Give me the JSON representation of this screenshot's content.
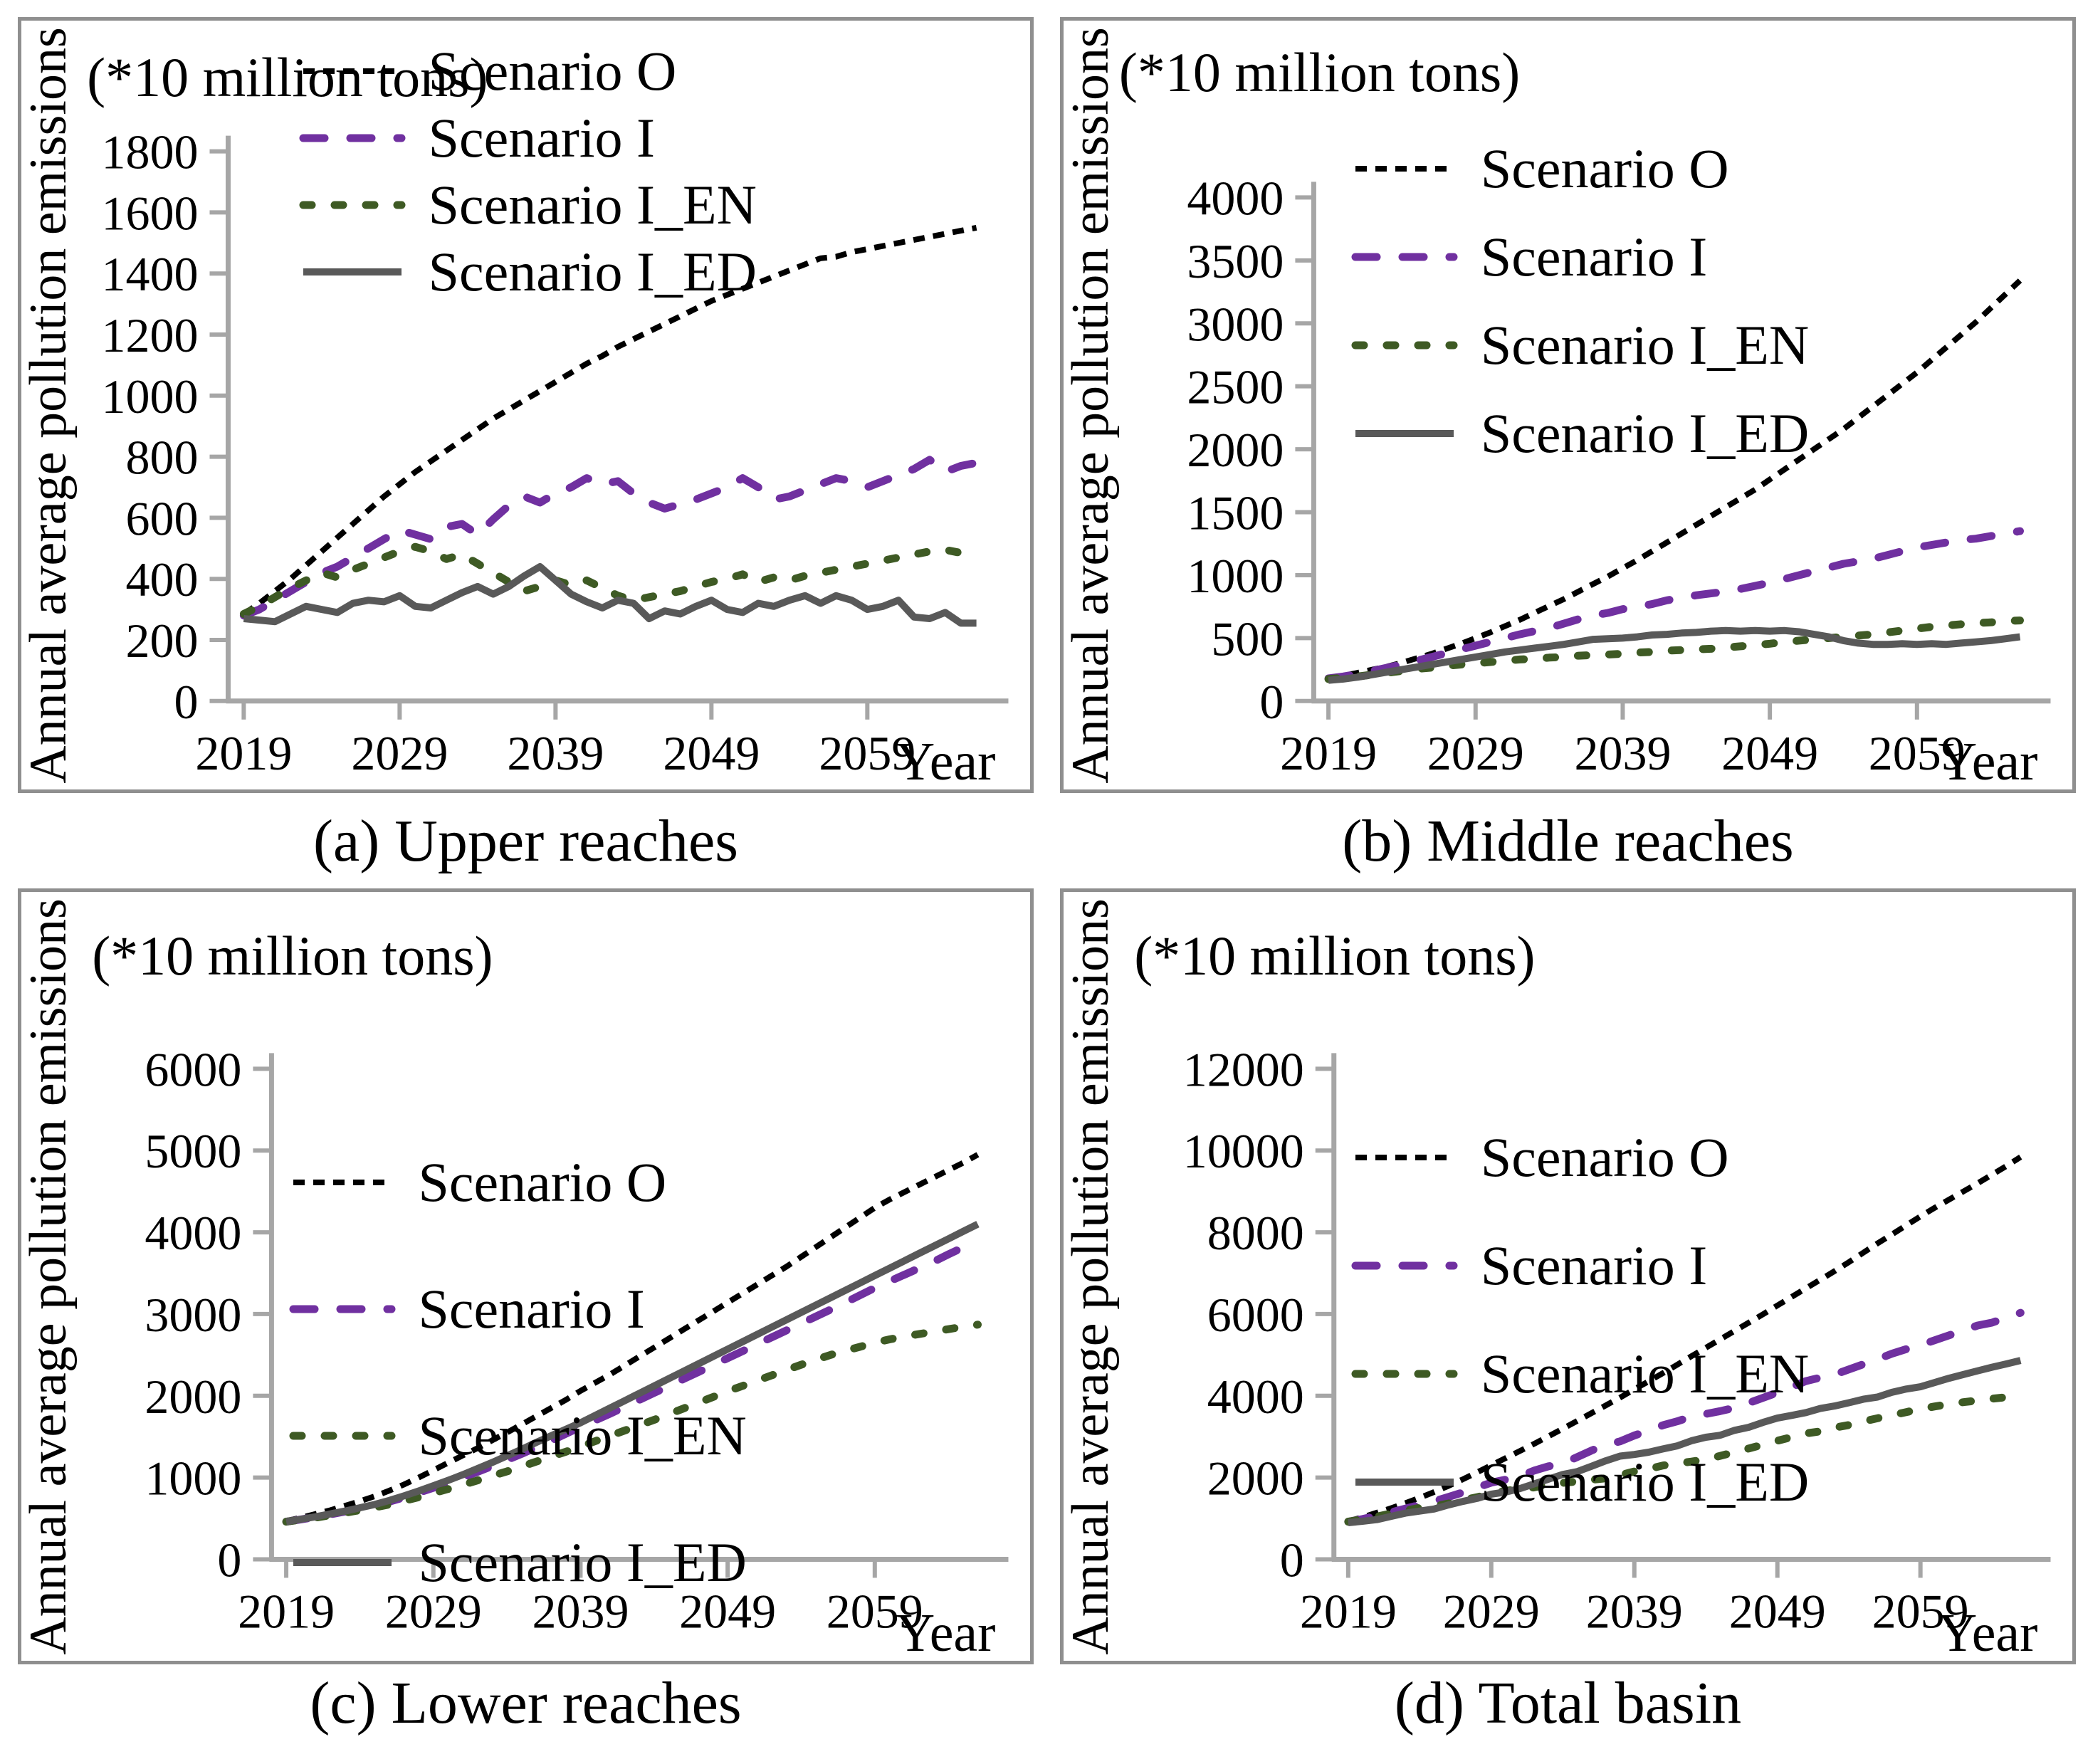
{
  "labels": {
    "y_axis": "Annual average pollution emissions",
    "x_axis": "Year",
    "unit_note": "(*10 million tons)"
  },
  "legend": {
    "entries": [
      "Scenario O",
      "Scenario I",
      "Scenario I_EN",
      "Scenario I_ED"
    ]
  },
  "colors": {
    "scenario_o": "#000000",
    "scenario_i": "#7030A0",
    "scenario_i_en": "#3E5A24",
    "scenario_i_ed": "#595959",
    "axis_gray": "#a6a6a6",
    "frame_gray": "#8f8f8f"
  },
  "chart_data": [
    {
      "id": "a",
      "type": "line",
      "title": "(a) Upper reaches",
      "unit_note": "(*10 million tons)",
      "ylabel": "Annual average pollution emissions",
      "xlabel": "Year",
      "ylim": [
        0,
        1800
      ],
      "y_step": 200,
      "x_years_start": 2019,
      "x_ticks": [
        2019,
        2029,
        2039,
        2049,
        2059
      ],
      "xlim": [
        2018,
        2067.5
      ],
      "grid": false,
      "legend_position": "top-inside",
      "series": [
        {
          "name": "Scenario O",
          "color": "#000000",
          "line_style": "dotted-short",
          "values": [
            285,
            320,
            360,
            400,
            445,
            490,
            535,
            580,
            625,
            670,
            710,
            750,
            785,
            820,
            855,
            890,
            925,
            955,
            985,
            1015,
            1045,
            1075,
            1105,
            1130,
            1160,
            1185,
            1210,
            1235,
            1260,
            1285,
            1310,
            1330,
            1350,
            1370,
            1390,
            1410,
            1430,
            1450,
            1455,
            1470,
            1480,
            1490,
            1500,
            1510,
            1520,
            1530,
            1540,
            1550
          ]
        },
        {
          "name": "Scenario I",
          "color": "#7030A0",
          "line_style": "dashed-long",
          "values": [
            280,
            300,
            330,
            360,
            390,
            420,
            440,
            470,
            500,
            530,
            560,
            545,
            530,
            570,
            580,
            545,
            595,
            640,
            670,
            650,
            680,
            700,
            730,
            710,
            720,
            680,
            650,
            630,
            645,
            660,
            680,
            700,
            730,
            700,
            660,
            670,
            690,
            710,
            730,
            720,
            700,
            720,
            740,
            760,
            790,
            750,
            770,
            780
          ]
        },
        {
          "name": "Scenario I_EN",
          "color": "#3E5A24",
          "line_style": "dashed-short",
          "values": [
            285,
            310,
            340,
            370,
            395,
            420,
            405,
            430,
            450,
            470,
            490,
            505,
            490,
            465,
            480,
            450,
            420,
            390,
            360,
            375,
            395,
            380,
            395,
            370,
            345,
            330,
            340,
            350,
            360,
            375,
            390,
            400,
            415,
            390,
            405,
            395,
            410,
            420,
            430,
            440,
            450,
            460,
            470,
            480,
            490,
            495,
            485,
            500
          ]
        },
        {
          "name": "Scenario I_ED",
          "color": "#595959",
          "line_style": "solid",
          "values": [
            270,
            265,
            260,
            285,
            310,
            300,
            290,
            320,
            330,
            325,
            345,
            310,
            305,
            330,
            355,
            375,
            350,
            375,
            410,
            440,
            395,
            350,
            325,
            305,
            330,
            320,
            270,
            295,
            285,
            310,
            330,
            300,
            290,
            320,
            310,
            330,
            345,
            320,
            345,
            330,
            300,
            310,
            330,
            275,
            270,
            290,
            255,
            255
          ]
        }
      ]
    },
    {
      "id": "b",
      "type": "line",
      "title": "(b) Middle reaches",
      "unit_note": "(*10 million tons)",
      "ylabel": "Annual average pollution emissions",
      "xlabel": "Year",
      "ylim": [
        0,
        4000
      ],
      "y_step": 500,
      "x_years_start": 2019,
      "x_ticks": [
        2019,
        2029,
        2039,
        2049,
        2059
      ],
      "xlim": [
        2018,
        2067.5
      ],
      "grid": false,
      "legend_position": "upper-left-inside",
      "series": [
        {
          "name": "Scenario O",
          "color": "#000000",
          "line_style": "dotted-short",
          "values": [
            180,
            200,
            225,
            250,
            275,
            305,
            340,
            375,
            415,
            455,
            500,
            545,
            595,
            645,
            700,
            755,
            810,
            870,
            930,
            990,
            1055,
            1120,
            1190,
            1260,
            1330,
            1400,
            1470,
            1540,
            1610,
            1680,
            1760,
            1840,
            1920,
            2000,
            2080,
            2160,
            2250,
            2340,
            2430,
            2520,
            2610,
            2710,
            2810,
            2910,
            3010,
            3120,
            3230,
            3340
          ]
        },
        {
          "name": "Scenario I",
          "color": "#7030A0",
          "line_style": "dashed-long",
          "values": [
            180,
            195,
            215,
            240,
            265,
            290,
            320,
            350,
            380,
            410,
            440,
            470,
            500,
            530,
            555,
            580,
            615,
            650,
            680,
            700,
            730,
            750,
            770,
            800,
            820,
            840,
            855,
            870,
            890,
            915,
            940,
            970,
            1000,
            1030,
            1060,
            1090,
            1110,
            1130,
            1160,
            1190,
            1220,
            1240,
            1260,
            1280,
            1290,
            1310,
            1330,
            1350
          ]
        },
        {
          "name": "Scenario I_EN",
          "color": "#3E5A24",
          "line_style": "dashed-short",
          "values": [
            175,
            185,
            195,
            210,
            225,
            240,
            255,
            265,
            280,
            290,
            300,
            310,
            320,
            330,
            335,
            345,
            350,
            360,
            365,
            370,
            375,
            385,
            390,
            400,
            405,
            410,
            415,
            425,
            435,
            445,
            455,
            470,
            480,
            490,
            500,
            510,
            520,
            530,
            545,
            560,
            575,
            590,
            600,
            610,
            620,
            625,
            635,
            640
          ]
        },
        {
          "name": "Scenario I_ED",
          "color": "#595959",
          "line_style": "solid",
          "values": [
            165,
            175,
            190,
            210,
            230,
            250,
            270,
            290,
            310,
            330,
            350,
            370,
            390,
            405,
            420,
            435,
            450,
            470,
            490,
            495,
            500,
            510,
            525,
            530,
            540,
            545,
            555,
            560,
            555,
            560,
            555,
            560,
            550,
            530,
            510,
            480,
            460,
            450,
            450,
            455,
            450,
            455,
            450,
            460,
            470,
            480,
            495,
            510
          ]
        }
      ]
    },
    {
      "id": "c",
      "type": "line",
      "title": "(c) Lower reaches",
      "unit_note": "(*10 million tons)",
      "ylabel": "Annual average pollution emissions",
      "xlabel": "Year",
      "ylim": [
        0,
        6000
      ],
      "y_step": 1000,
      "x_years_start": 2019,
      "x_ticks": [
        2019,
        2029,
        2039,
        2049,
        2059
      ],
      "xlim": [
        2018,
        2067.5
      ],
      "grid": false,
      "legend_position": "upper-left-inside",
      "series": [
        {
          "name": "Scenario O",
          "color": "#000000",
          "line_style": "dotted-short",
          "values": [
            470,
            510,
            555,
            600,
            655,
            710,
            770,
            840,
            915,
            1000,
            1090,
            1180,
            1270,
            1360,
            1455,
            1550,
            1650,
            1750,
            1850,
            1950,
            2060,
            2160,
            2260,
            2370,
            2480,
            2590,
            2700,
            2810,
            2920,
            3030,
            3140,
            3250,
            3360,
            3470,
            3580,
            3700,
            3820,
            3940,
            4060,
            4180,
            4300,
            4400,
            4490,
            4580,
            4670,
            4760,
            4850,
            4950
          ]
        },
        {
          "name": "Scenario I",
          "color": "#7030A0",
          "line_style": "dashed-long",
          "values": [
            460,
            488,
            518,
            550,
            585,
            622,
            660,
            705,
            757,
            815,
            875,
            935,
            1000,
            1070,
            1140,
            1215,
            1290,
            1370,
            1450,
            1535,
            1620,
            1700,
            1780,
            1865,
            1950,
            2035,
            2120,
            2205,
            2290,
            2375,
            2460,
            2545,
            2630,
            2715,
            2800,
            2885,
            2970,
            3055,
            3140,
            3230,
            3320,
            3400,
            3480,
            3560,
            3640,
            3730,
            3815,
            3900
          ]
        },
        {
          "name": "Scenario I_EN",
          "color": "#3E5A24",
          "line_style": "dashed-short",
          "values": [
            460,
            485,
            510,
            540,
            570,
            600,
            635,
            670,
            715,
            760,
            810,
            860,
            910,
            965,
            1020,
            1075,
            1135,
            1195,
            1255,
            1315,
            1380,
            1445,
            1510,
            1575,
            1640,
            1705,
            1775,
            1845,
            1915,
            1985,
            2055,
            2120,
            2185,
            2250,
            2315,
            2380,
            2440,
            2500,
            2550,
            2600,
            2650,
            2690,
            2725,
            2755,
            2785,
            2815,
            2845,
            2870
          ]
        },
        {
          "name": "Scenario I_ED",
          "color": "#595959",
          "line_style": "solid",
          "values": [
            460,
            490,
            520,
            555,
            590,
            630,
            670,
            720,
            775,
            835,
            900,
            965,
            1035,
            1110,
            1185,
            1265,
            1345,
            1430,
            1510,
            1590,
            1670,
            1760,
            1850,
            1940,
            2030,
            2120,
            2210,
            2300,
            2390,
            2480,
            2570,
            2660,
            2750,
            2840,
            2930,
            3020,
            3110,
            3200,
            3290,
            3380,
            3470,
            3560,
            3650,
            3740,
            3830,
            3920,
            4010,
            4100
          ]
        }
      ]
    },
    {
      "id": "d",
      "type": "line",
      "title": "(d) Total basin",
      "unit_note": "(*10 million tons)",
      "ylabel": "Annual average pollution emissions",
      "xlabel": "Year",
      "ylim": [
        0,
        12000
      ],
      "y_step": 2000,
      "x_years_start": 2019,
      "x_ticks": [
        2019,
        2029,
        2039,
        2049,
        2059
      ],
      "xlim": [
        2018,
        2067.5
      ],
      "grid": false,
      "legend_position": "upper-left-inside",
      "series": [
        {
          "name": "Scenario O",
          "color": "#000000",
          "line_style": "dotted-short",
          "values": [
            935,
            1030,
            1140,
            1250,
            1375,
            1505,
            1645,
            1795,
            1955,
            2125,
            2300,
            2475,
            2650,
            2825,
            3010,
            3195,
            3385,
            3575,
            3765,
            3955,
            4160,
            4355,
            4555,
            4760,
            4970,
            5175,
            5380,
            5585,
            5790,
            5995,
            6210,
            6420,
            6630,
            6840,
            7050,
            7270,
            7500,
            7730,
            7945,
            8170,
            8390,
            8600,
            8800,
            9000,
            9200,
            9410,
            9620,
            9840
          ]
        },
        {
          "name": "Scenario I",
          "color": "#7030A0",
          "line_style": "dashed-long",
          "values": [
            920,
            985,
            1065,
            1150,
            1240,
            1330,
            1420,
            1525,
            1635,
            1755,
            1875,
            1950,
            2030,
            2170,
            2275,
            2340,
            2500,
            2660,
            2800,
            2885,
            3030,
            3150,
            3280,
            3375,
            3490,
            3555,
            3625,
            3705,
            3825,
            3950,
            4080,
            4215,
            4360,
            4445,
            4520,
            4645,
            4770,
            4895,
            5030,
            5140,
            5240,
            5360,
            5480,
            5600,
            5720,
            5790,
            5915,
            6030
          ]
        },
        {
          "name": "Scenario I_EN",
          "color": "#3E5A24",
          "line_style": "dashed-short",
          "values": [
            920,
            980,
            1045,
            1120,
            1190,
            1260,
            1295,
            1365,
            1445,
            1520,
            1600,
            1675,
            1720,
            1760,
            1835,
            1870,
            1905,
            1945,
            1980,
            2060,
            2150,
            2210,
            2295,
            2345,
            2390,
            2445,
            2530,
            2620,
            2710,
            2805,
            2900,
            2990,
            3080,
            3130,
            3220,
            3285,
            3370,
            3450,
            3525,
            3600,
            3675,
            3740,
            3795,
            3845,
            3885,
            3930,
            3965,
            4010
          ]
        },
        {
          "name": "Scenario I_ED",
          "color": "#595959",
          "line_style": "solid",
          "values": [
            895,
            930,
            970,
            1050,
            1130,
            1180,
            1230,
            1330,
            1415,
            1490,
            1595,
            1645,
            1730,
            1845,
            1960,
            2075,
            2145,
            2275,
            2410,
            2525,
            2565,
            2620,
            2700,
            2775,
            2900,
            2985,
            3035,
            3155,
            3230,
            3350,
            3455,
            3520,
            3590,
            3690,
            3750,
            3830,
            3915,
            3970,
            4085,
            4165,
            4220,
            4325,
            4430,
            4520,
            4610,
            4700,
            4780,
            4865
          ]
        }
      ]
    }
  ]
}
